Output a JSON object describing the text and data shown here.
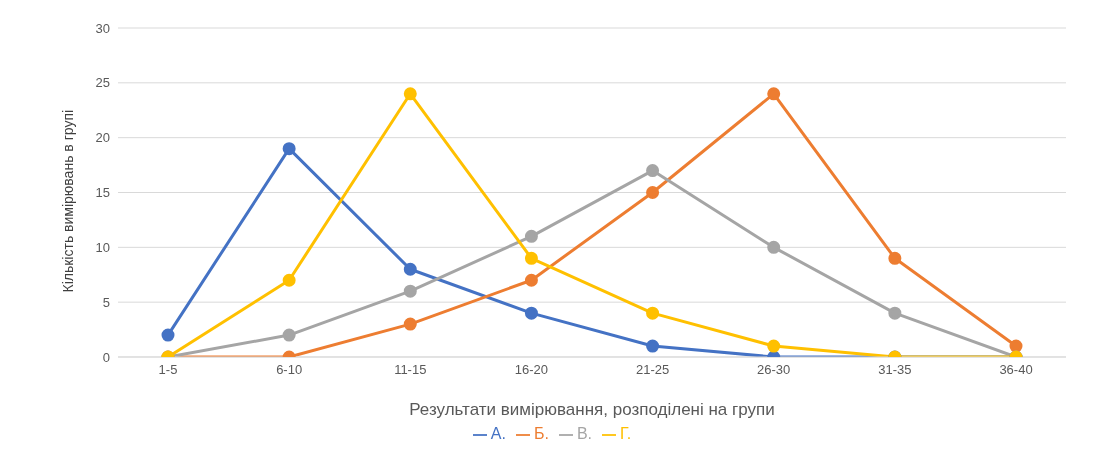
{
  "chart_data": {
    "type": "line",
    "xlabel": "Результати вимірювання, розподілені на групи",
    "ylabel": "Кількість вимірювань в групі",
    "categories": [
      "1-5",
      "6-10",
      "11-15",
      "16-20",
      "21-25",
      "26-30",
      "31-35",
      "36-40"
    ],
    "series": [
      {
        "name": "А.",
        "color": "#4472c4",
        "values": [
          2,
          19,
          8,
          4,
          1,
          0,
          0,
          0
        ]
      },
      {
        "name": "Б.",
        "color": "#ed7d31",
        "values": [
          0,
          0,
          3,
          7,
          15,
          24,
          9,
          1
        ]
      },
      {
        "name": "В.",
        "color": "#a5a5a5",
        "values": [
          0,
          2,
          6,
          11,
          17,
          10,
          4,
          0
        ]
      },
      {
        "name": "Г.",
        "color": "#ffc000",
        "values": [
          0,
          7,
          24,
          9,
          4,
          1,
          0,
          0
        ]
      }
    ],
    "ylim": [
      0,
      30
    ],
    "yticks": [
      0,
      5,
      10,
      15,
      20,
      25,
      30
    ],
    "grid": "y",
    "legend": "bottom",
    "marker": "circle",
    "line_style": "solid"
  }
}
